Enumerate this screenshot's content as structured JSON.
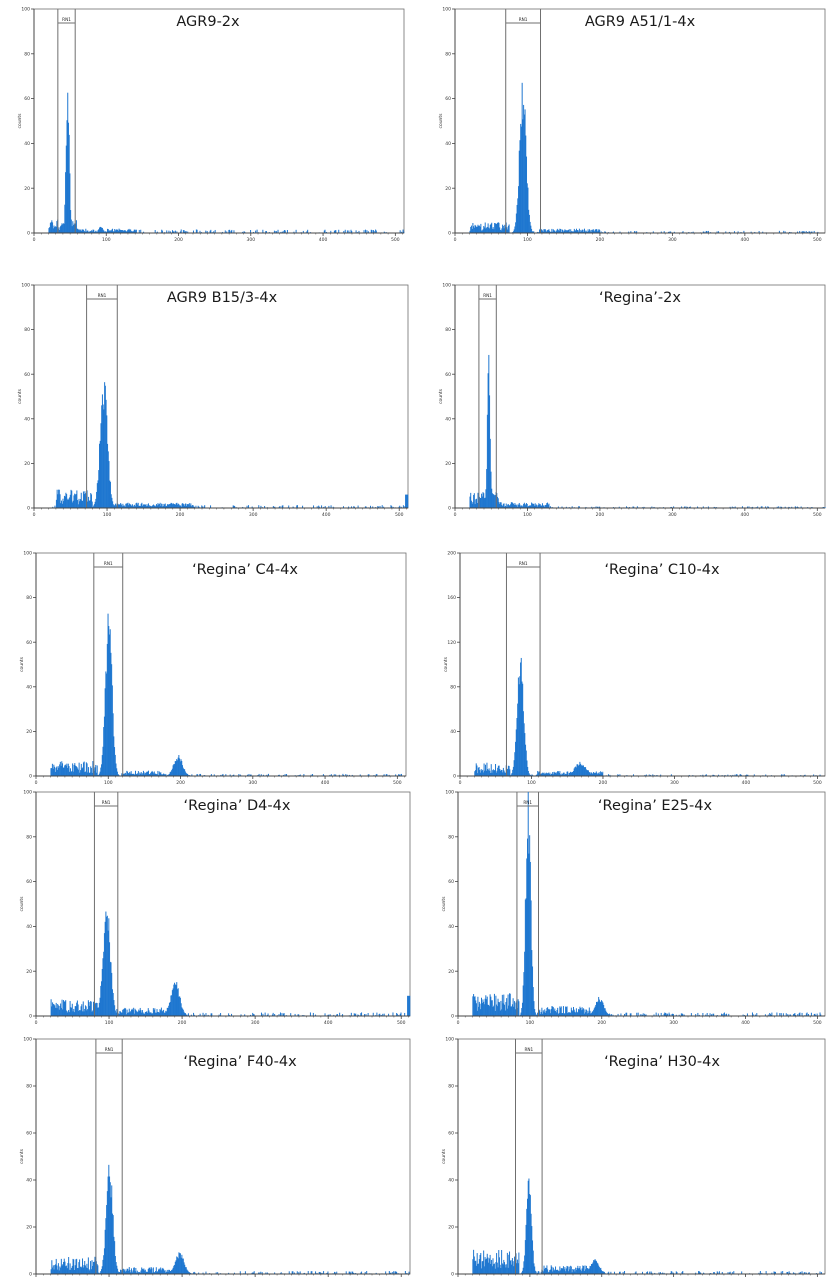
{
  "colors": {
    "bar": "#1f77d0",
    "axis": "#444444",
    "frame": "#6f6f6f",
    "gate": "#6f6f6f"
  },
  "shared": {
    "ylabel": "counts",
    "gate_label": "RN1",
    "x_ticks": [
      0,
      100,
      200,
      300,
      400,
      500
    ]
  },
  "chart_data": [
    {
      "type": "bar",
      "title": "AGR9-2x",
      "ylabel": "counts",
      "xlim": [
        0,
        512
      ],
      "ylim": [
        0,
        100
      ],
      "y_ticks": [
        0,
        20,
        40,
        60,
        80,
        100
      ],
      "gate": {
        "label": "RN1",
        "start": 33,
        "end": 57
      },
      "baseline": 1.0,
      "noise_segments": [
        {
          "from": 20,
          "to": 60,
          "level": 4
        },
        {
          "from": 60,
          "to": 140,
          "level": 1.3
        }
      ],
      "peaks": [
        {
          "center": 46,
          "height": 65,
          "sd": 2.2
        },
        {
          "center": 92,
          "height": 3,
          "sd": 3
        }
      ]
    },
    {
      "type": "bar",
      "title": "AGR9 A51/1-4x",
      "ylabel": "counts",
      "xlim": [
        0,
        512
      ],
      "ylim": [
        0,
        100
      ],
      "y_ticks": [
        0,
        20,
        40,
        60,
        80,
        100
      ],
      "gate": {
        "label": "RN1",
        "start": 70,
        "end": 118
      },
      "baseline": 0.6,
      "noise_segments": [
        {
          "from": 20,
          "to": 75,
          "level": 3.2
        },
        {
          "from": 115,
          "to": 200,
          "level": 1.3
        }
      ],
      "peaks": [
        {
          "center": 93,
          "height": 64,
          "sd": 4.5
        }
      ]
    },
    {
      "type": "bar",
      "title": "AGR9 B15/3-4x",
      "ylabel": "counts",
      "xlim": [
        0,
        512
      ],
      "ylim": [
        0,
        100
      ],
      "y_ticks": [
        0,
        20,
        40,
        60,
        80,
        100
      ],
      "gate": {
        "label": "RN1",
        "start": 72,
        "end": 114
      },
      "baseline": 0.8,
      "noise_segments": [
        {
          "from": 30,
          "to": 80,
          "level": 5.5
        },
        {
          "from": 110,
          "to": 220,
          "level": 1.6
        }
      ],
      "peaks": [
        {
          "center": 95,
          "height": 56,
          "sd": 5
        },
        {
          "center": 190,
          "height": 2,
          "sd": 8
        }
      ],
      "edge_spike": 6
    },
    {
      "type": "bar",
      "title": "‘Regina’-2x",
      "ylabel": "counts",
      "xlim": [
        0,
        512
      ],
      "ylim": [
        0,
        100
      ],
      "y_ticks": [
        0,
        20,
        40,
        60,
        80,
        100
      ],
      "gate": {
        "label": "RN1",
        "start": 33,
        "end": 57
      },
      "baseline": 0.5,
      "noise_segments": [
        {
          "from": 20,
          "to": 60,
          "level": 5
        },
        {
          "from": 60,
          "to": 130,
          "level": 1.8
        }
      ],
      "peaks": [
        {
          "center": 46,
          "height": 64,
          "sd": 2
        }
      ]
    },
    {
      "type": "bar",
      "title": "‘Regina’ C4-4x",
      "ylabel": "counts",
      "xlim": [
        0,
        512
      ],
      "ylim": [
        0,
        100
      ],
      "y_ticks": [
        0,
        20,
        40,
        60,
        80,
        100
      ],
      "gate": {
        "label": "RN1",
        "start": 80,
        "end": 120
      },
      "baseline": 0.6,
      "noise_segments": [
        {
          "from": 20,
          "to": 85,
          "level": 4.5
        },
        {
          "from": 118,
          "to": 180,
          "level": 1.6
        }
      ],
      "peaks": [
        {
          "center": 100,
          "height": 72,
          "sd": 4.5
        },
        {
          "center": 196,
          "height": 9,
          "sd": 6
        }
      ]
    },
    {
      "type": "bar",
      "title": "‘Regina’ C10-4x",
      "ylabel": "counts",
      "xlim": [
        0,
        512
      ],
      "ylim": [
        0,
        200
      ],
      "y_ticks": [
        0,
        40,
        80,
        120,
        160,
        200
      ],
      "gate": {
        "label": "RN1",
        "start": 65,
        "end": 112
      },
      "baseline": 1.0,
      "noise_segments": [
        {
          "from": 20,
          "to": 70,
          "level": 8
        },
        {
          "from": 108,
          "to": 200,
          "level": 3
        }
      ],
      "peaks": [
        {
          "center": 84,
          "height": 104,
          "sd": 4.5
        },
        {
          "center": 168,
          "height": 12,
          "sd": 8
        }
      ]
    },
    {
      "type": "bar",
      "title": "‘Regina’ D4-4x",
      "ylabel": "counts",
      "xlim": [
        0,
        512
      ],
      "ylim": [
        0,
        100
      ],
      "y_ticks": [
        0,
        20,
        40,
        60,
        80,
        100
      ],
      "gate": {
        "label": "RN1",
        "start": 80,
        "end": 112
      },
      "baseline": 1.0,
      "noise_segments": [
        {
          "from": 20,
          "to": 85,
          "level": 5
        },
        {
          "from": 110,
          "to": 185,
          "level": 2.5
        }
      ],
      "peaks": [
        {
          "center": 96,
          "height": 50,
          "sd": 5
        },
        {
          "center": 190,
          "height": 15,
          "sd": 6
        }
      ],
      "edge_spike": 9
    },
    {
      "type": "bar",
      "title": "‘Regina’ E25-4x",
      "ylabel": "counts",
      "xlim": [
        0,
        512
      ],
      "ylim": [
        0,
        100
      ],
      "y_ticks": [
        0,
        20,
        40,
        60,
        80,
        100
      ],
      "gate": {
        "label": "RN1",
        "start": 82,
        "end": 112
      },
      "baseline": 1.0,
      "noise_segments": [
        {
          "from": 20,
          "to": 85,
          "level": 7
        },
        {
          "from": 110,
          "to": 185,
          "level": 3
        }
      ],
      "peaks": [
        {
          "center": 97,
          "height": 95,
          "sd": 3.5
        },
        {
          "center": 196,
          "height": 8,
          "sd": 6
        }
      ]
    },
    {
      "type": "bar",
      "title": "‘Regina’ F40-4x",
      "ylabel": "counts",
      "xlim": [
        0,
        512
      ],
      "ylim": [
        0,
        100
      ],
      "y_ticks": [
        0,
        20,
        40,
        60,
        80,
        100
      ],
      "gate": {
        "label": "RN1",
        "start": 82,
        "end": 118
      },
      "baseline": 0.8,
      "noise_segments": [
        {
          "from": 20,
          "to": 85,
          "level": 5
        },
        {
          "from": 115,
          "to": 185,
          "level": 2
        }
      ],
      "peaks": [
        {
          "center": 100,
          "height": 45,
          "sd": 4.5
        },
        {
          "center": 196,
          "height": 9,
          "sd": 6
        }
      ]
    },
    {
      "type": "bar",
      "title": "‘Regina’ H30-4x",
      "ylabel": "counts",
      "xlim": [
        0,
        512
      ],
      "ylim": [
        0,
        100
      ],
      "y_ticks": [
        0,
        20,
        40,
        60,
        80,
        100
      ],
      "gate": {
        "label": "RN1",
        "start": 80,
        "end": 117
      },
      "baseline": 0.8,
      "noise_segments": [
        {
          "from": 20,
          "to": 85,
          "level": 7
        },
        {
          "from": 115,
          "to": 190,
          "level": 2.5
        }
      ],
      "peaks": [
        {
          "center": 98,
          "height": 42,
          "sd": 3.5
        },
        {
          "center": 190,
          "height": 6,
          "sd": 6
        }
      ]
    }
  ]
}
